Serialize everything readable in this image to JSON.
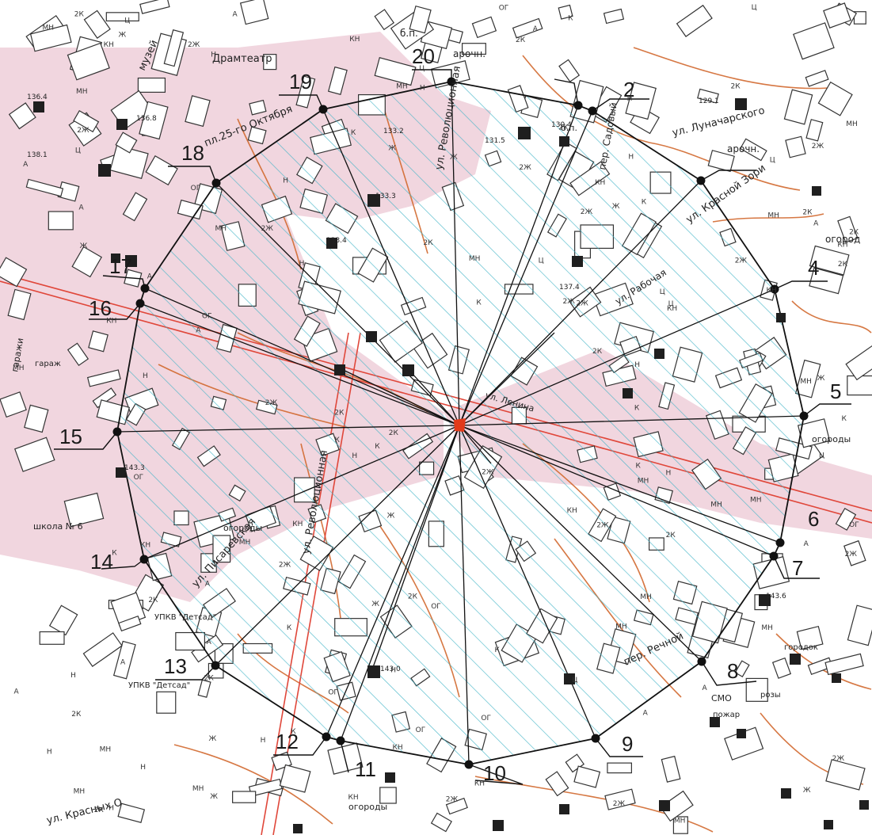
{
  "map": {
    "colors": {
      "background": "#ffffff",
      "urban_fill": "#f1d6df",
      "hatch": "#3fb3c6",
      "contour": "#d2692f",
      "road_red": "#e0473a",
      "polygon": "#111111",
      "center": "#e23a1a",
      "building_stroke": "#333333",
      "dark_square": "#1f1f1f"
    },
    "point_labels": [
      "2",
      "4",
      "5",
      "6",
      "7",
      "8",
      "9",
      "10",
      "11",
      "12",
      "13",
      "14",
      "15",
      "16",
      "17",
      "18",
      "19",
      "20"
    ],
    "street_labels": {
      "revolutsionnaya_top": "ул. Революционная",
      "revolutsionnaya_mid": "ул. Революционная",
      "sadovaya": "пер. Садовый",
      "lunacharskogo": "ул. Луначарского",
      "krasnoy_zori": "ул. Красной Зори",
      "pl_25_oktyabrya": "пл.25-го Октября",
      "pisarevskaya": "ул. Писаревская",
      "rechnoy": "пер. Речной",
      "krasnykh": "ул. Красных О",
      "lenina": "ул. Ленина",
      "ul_rabochaya": "ул. Рабочая"
    },
    "place_labels": {
      "dramteatr": "Драмтеатр",
      "muzey": "музей",
      "school": "школа № 6",
      "upk_detsad_13": "УПКВ \"Детсад\"",
      "upk_detsad": "УПКВ \"Детсад\"",
      "arch_1": "арочн.",
      "arch_2": "арочн.",
      "ogorody_1": "огороды",
      "ogorody_2": "огороды",
      "ogorody_3": "огороды",
      "ogorod": "огород",
      "bp": "б.п.",
      "bp2": "б.п.",
      "garazhi": "гаражи",
      "garazh": "гараж",
      "smo": "СМО",
      "pozhar": "пожар",
      "rozy": "розы",
      "gorodok": "городок"
    },
    "elevations": [
      "136.4",
      "136.8",
      "138.1",
      "133.2",
      "133.3",
      "133.4",
      "131.5",
      "130.4",
      "129.1",
      "137.4",
      "143.3",
      "143.0",
      "143.6"
    ],
    "building_codes": [
      "К",
      "КН",
      "Ж",
      "2Ж",
      "2К",
      "Ц",
      "А",
      "МН",
      "Н",
      "ОГ"
    ]
  }
}
